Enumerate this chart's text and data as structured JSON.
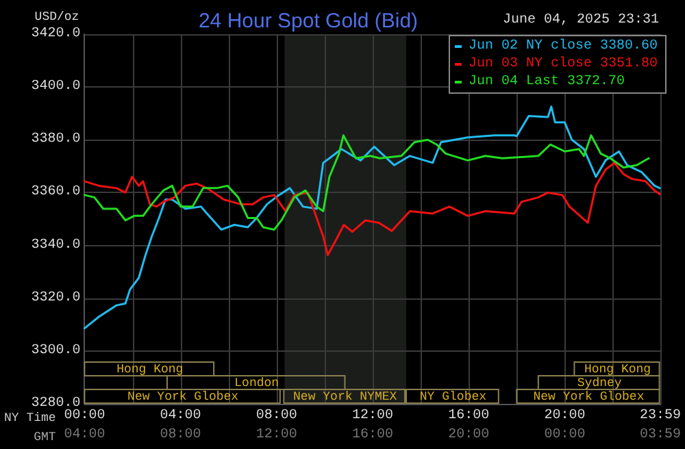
{
  "chart_data": {
    "type": "line",
    "title": "24 Hour Spot Gold (Bid)",
    "subtitle": "June 04, 2025 23:31",
    "ylabel": "USD/oz",
    "xlabel": "NY Time",
    "x2label": "GMT",
    "xlim": [
      0,
      24
    ],
    "xticks": [
      {
        "value": 0,
        "label": "00:00"
      },
      {
        "value": 2,
        "label": null
      },
      {
        "value": 4,
        "label": "04:00"
      },
      {
        "value": 6,
        "label": null
      },
      {
        "value": 8,
        "label": "08:00"
      },
      {
        "value": 10,
        "label": null
      },
      {
        "value": 12,
        "label": "12:00"
      },
      {
        "value": 14,
        "label": null
      },
      {
        "value": 16,
        "label": "16:00"
      },
      {
        "value": 18,
        "label": null
      },
      {
        "value": 20,
        "label": "20:00"
      },
      {
        "value": 22,
        "label": null
      },
      {
        "value": 23.983,
        "label": "23:59"
      }
    ],
    "x2lim": [
      "2025-06-04T04:00",
      "2025-06-05T04:00"
    ],
    "x2ticks": [
      {
        "value": "2025-06-04T04:00",
        "label": "04:00"
      },
      {
        "value": "2025-06-04T08:00",
        "label": "08:00"
      },
      {
        "value": "2025-06-04T12:00",
        "label": "12:00"
      },
      {
        "value": "2025-06-04T16:00",
        "label": "16:00"
      },
      {
        "value": "2025-06-04T20:00",
        "label": "20:00"
      },
      {
        "value": "2025-06-05T00:00",
        "label": "00:00"
      },
      {
        "value": "2025-06-05T03:59",
        "label": "03:59"
      }
    ],
    "ylim": [
      3280,
      3420
    ],
    "yticks": [
      {
        "value": 3280,
        "label": "3280.0"
      },
      {
        "value": 3300,
        "label": "3300.0"
      },
      {
        "value": 3320,
        "label": "3320.0"
      },
      {
        "value": 3340,
        "label": "3340.0"
      },
      {
        "value": 3360,
        "label": "3360.0"
      },
      {
        "value": 3380,
        "label": "3380.0"
      },
      {
        "value": 3400,
        "label": "3400.0"
      },
      {
        "value": 3420,
        "label": "3420.0"
      }
    ],
    "grid": true,
    "legend": "top right",
    "line_style": "solid",
    "bands": [
      {
        "axis": "x",
        "from": 8.33,
        "to": 13.4,
        "color": "#1b1d1b"
      }
    ],
    "series": [
      {
        "name": "Jun 02 NY close 3380.60",
        "color": "#22bbee",
        "x": [
          0,
          0.6,
          1.33,
          1.7,
          1.9,
          2.26,
          2.54,
          2.8,
          3.1,
          3.37,
          3.65,
          4.2,
          4.85,
          5.1,
          5.7,
          6.24,
          6.8,
          7.17,
          7.6,
          8.1,
          8.55,
          9.1,
          9.67,
          9.94,
          10.2,
          10.7,
          11.5,
          12.07,
          12.9,
          13.55,
          14.5,
          14.85,
          15.96,
          17.07,
          17.9,
          18.0,
          18.5,
          19.3,
          19.44,
          19.6,
          20.0,
          20.3,
          20.8,
          21.3,
          21.7,
          22.26,
          22.6,
          23.2,
          23.74,
          23.96
        ],
        "values": [
          3308.6,
          3313,
          3317.3,
          3318,
          3323.4,
          3327.7,
          3336.4,
          3343.4,
          3350.4,
          3357.4,
          3357.4,
          3353.9,
          3354.7,
          3352.1,
          3346,
          3347.8,
          3346.9,
          3350.4,
          3355.6,
          3359.1,
          3361.7,
          3354.7,
          3353.9,
          3371.3,
          3373,
          3376.5,
          3372.2,
          3377.4,
          3370.4,
          3373.9,
          3371.3,
          3379.1,
          3380.9,
          3381.7,
          3381.7,
          3381.4,
          3389,
          3388.6,
          3392.6,
          3386.6,
          3386.6,
          3380,
          3376.5,
          3366,
          3372.2,
          3375.6,
          3370.4,
          3367.8,
          3362.6,
          3361.7
        ]
      },
      {
        "name": "Jun 03 NY close 3351.80",
        "color": "#ee1111",
        "x": [
          0,
          0.6,
          1.33,
          1.7,
          1.98,
          2.26,
          2.44,
          2.72,
          3.0,
          3.28,
          3.74,
          4.2,
          4.67,
          5.1,
          5.8,
          6.5,
          7.0,
          7.44,
          7.9,
          8.37,
          8.74,
          9.3,
          9.67,
          9.94,
          10.13,
          10.4,
          10.8,
          11.15,
          11.7,
          12.26,
          12.8,
          13.55,
          14.5,
          15.2,
          15.96,
          16.7,
          17.9,
          18.2,
          18.9,
          19.3,
          19.9,
          20.2,
          20.96,
          21.3,
          21.7,
          22.07,
          22.45,
          22.8,
          23.37,
          23.74,
          23.96
        ],
        "values": [
          3364.3,
          3362.6,
          3361.7,
          3360,
          3366,
          3362.6,
          3364.3,
          3355.6,
          3354.7,
          3356.5,
          3358.2,
          3362.6,
          3363.4,
          3361.7,
          3357.4,
          3355.6,
          3355.6,
          3358.2,
          3359.1,
          3353,
          3359.1,
          3360,
          3350.4,
          3343.4,
          3336.4,
          3340.8,
          3347.8,
          3345.2,
          3349.5,
          3348.6,
          3345.5,
          3353,
          3352.1,
          3354.7,
          3351.2,
          3353,
          3352.1,
          3356.5,
          3358.2,
          3360,
          3359.1,
          3354.7,
          3348.6,
          3362.6,
          3368.7,
          3371.3,
          3367,
          3365.2,
          3364.3,
          3360.8,
          3359.4
        ]
      },
      {
        "name": "Jun 04 Last 3372.70",
        "color": "#22dd22",
        "x": [
          0,
          0.41,
          0.78,
          1.33,
          1.7,
          2.07,
          2.44,
          2.8,
          3.28,
          3.65,
          4.0,
          4.5,
          4.94,
          5.5,
          5.96,
          6.4,
          6.8,
          7.17,
          7.44,
          7.9,
          8.2,
          8.74,
          9.2,
          9.67,
          9.94,
          10.2,
          10.6,
          10.78,
          11.3,
          11.9,
          12.3,
          13.2,
          13.74,
          14.3,
          14.67,
          15.04,
          15.96,
          16.7,
          17.4,
          18.9,
          19.4,
          20.0,
          20.6,
          20.8,
          21.1,
          21.5,
          21.9,
          22.45,
          23.0,
          23.5
        ],
        "values": [
          3359.1,
          3358.2,
          3353.9,
          3353.9,
          3349.5,
          3351.2,
          3351.2,
          3355.6,
          3360.8,
          3362.6,
          3354.7,
          3354.7,
          3361.7,
          3361.7,
          3362.6,
          3358.2,
          3350.4,
          3350.4,
          3346.9,
          3346,
          3349.5,
          3358.2,
          3360.8,
          3354.7,
          3353,
          3366,
          3374.8,
          3381.7,
          3373,
          3373.9,
          3373,
          3373.9,
          3379.1,
          3380,
          3378.2,
          3374.8,
          3372.2,
          3373.9,
          3373,
          3373.9,
          3378.2,
          3375.6,
          3376.5,
          3373.9,
          3381.7,
          3374.8,
          3373,
          3369.5,
          3370.4,
          3373
        ]
      }
    ],
    "annotations": [
      "Hong Kong",
      "Hong Kong",
      "London",
      "Sydney",
      "New York Globex",
      "New York NYMEX",
      "NY Globex",
      "New York Globex"
    ]
  }
}
